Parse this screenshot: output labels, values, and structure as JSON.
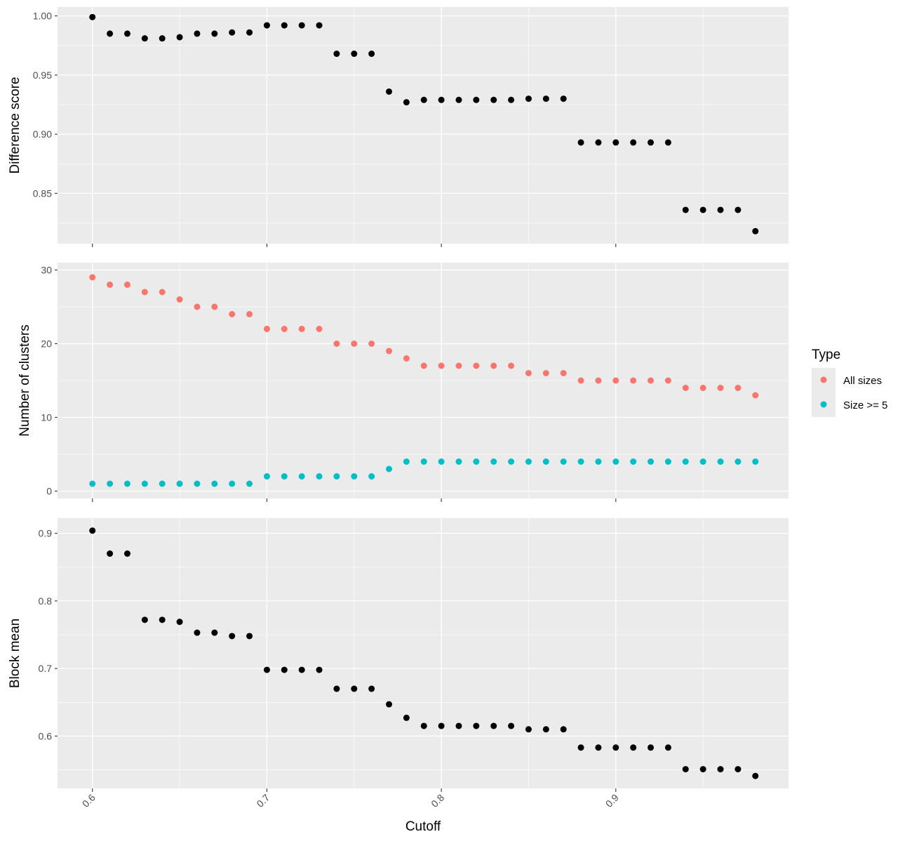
{
  "chart_data": {
    "type": "scatter",
    "xlabel": "Cutoff",
    "x_ticks": [
      "0.6",
      "0.7",
      "0.8",
      "0.9"
    ],
    "xlim": [
      0.58,
      0.999
    ],
    "grid": true,
    "legend": {
      "title": "Type",
      "placement": "right",
      "entries": [
        {
          "label": "All sizes",
          "color": "#F8766D"
        },
        {
          "label": "Size >= 5",
          "color": "#00BFC4"
        }
      ]
    },
    "panels": [
      {
        "ylabel": "Difference score",
        "ylim": [
          0.8075,
          1.0075
        ],
        "y_ticks": [
          "0.85",
          "0.90",
          "0.95",
          "1.00"
        ],
        "y_tick_values": [
          0.85,
          0.9,
          0.95,
          1.0
        ],
        "series": [
          {
            "color": "#000000",
            "x": [
              0.6,
              0.61,
              0.62,
              0.63,
              0.64,
              0.65,
              0.66,
              0.67,
              0.68,
              0.69,
              0.7,
              0.71,
              0.72,
              0.73,
              0.74,
              0.75,
              0.76,
              0.77,
              0.78,
              0.79,
              0.8,
              0.81,
              0.82,
              0.83,
              0.84,
              0.85,
              0.86,
              0.87,
              0.88,
              0.89,
              0.9,
              0.91,
              0.92,
              0.93,
              0.94,
              0.95,
              0.96,
              0.97,
              0.98
            ],
            "y": [
              0.999,
              0.985,
              0.985,
              0.981,
              0.981,
              0.982,
              0.985,
              0.985,
              0.986,
              0.986,
              0.992,
              0.992,
              0.992,
              0.992,
              0.968,
              0.968,
              0.968,
              0.936,
              0.927,
              0.929,
              0.929,
              0.929,
              0.929,
              0.929,
              0.929,
              0.93,
              0.93,
              0.93,
              0.893,
              0.893,
              0.893,
              0.893,
              0.893,
              0.893,
              0.836,
              0.836,
              0.836,
              0.836,
              0.818
            ]
          }
        ]
      },
      {
        "ylabel": "Number of clusters",
        "ylim": [
          -1,
          31
        ],
        "y_ticks": [
          "0",
          "10",
          "20",
          "30"
        ],
        "y_tick_values": [
          0,
          10,
          20,
          30
        ],
        "series": [
          {
            "name": "All sizes",
            "color": "#F8766D",
            "x": [
              0.6,
              0.61,
              0.62,
              0.63,
              0.64,
              0.65,
              0.66,
              0.67,
              0.68,
              0.69,
              0.7,
              0.71,
              0.72,
              0.73,
              0.74,
              0.75,
              0.76,
              0.77,
              0.78,
              0.79,
              0.8,
              0.81,
              0.82,
              0.83,
              0.84,
              0.85,
              0.86,
              0.87,
              0.88,
              0.89,
              0.9,
              0.91,
              0.92,
              0.93,
              0.94,
              0.95,
              0.96,
              0.97,
              0.98
            ],
            "y": [
              29,
              28,
              28,
              27,
              27,
              26,
              25,
              25,
              24,
              24,
              22,
              22,
              22,
              22,
              20,
              20,
              20,
              19,
              18,
              17,
              17,
              17,
              17,
              17,
              17,
              16,
              16,
              16,
              15,
              15,
              15,
              15,
              15,
              15,
              14,
              14,
              14,
              14,
              13
            ]
          },
          {
            "name": "Size >= 5",
            "color": "#00BFC4",
            "x": [
              0.6,
              0.61,
              0.62,
              0.63,
              0.64,
              0.65,
              0.66,
              0.67,
              0.68,
              0.69,
              0.7,
              0.71,
              0.72,
              0.73,
              0.74,
              0.75,
              0.76,
              0.77,
              0.78,
              0.79,
              0.8,
              0.81,
              0.82,
              0.83,
              0.84,
              0.85,
              0.86,
              0.87,
              0.88,
              0.89,
              0.9,
              0.91,
              0.92,
              0.93,
              0.94,
              0.95,
              0.96,
              0.97,
              0.98
            ],
            "y": [
              1,
              1,
              1,
              1,
              1,
              1,
              1,
              1,
              1,
              1,
              2,
              2,
              2,
              2,
              2,
              2,
              2,
              3,
              4,
              4,
              4,
              4,
              4,
              4,
              4,
              4,
              4,
              4,
              4,
              4,
              4,
              4,
              4,
              4,
              4,
              4,
              4,
              4,
              4
            ]
          }
        ]
      },
      {
        "ylabel": "Block mean",
        "ylim": [
          0.5225,
          0.9225
        ],
        "y_ticks": [
          "0.6",
          "0.7",
          "0.8",
          "0.9"
        ],
        "y_tick_values": [
          0.6,
          0.7,
          0.8,
          0.9
        ],
        "series": [
          {
            "color": "#000000",
            "x": [
              0.6,
              0.61,
              0.62,
              0.63,
              0.64,
              0.65,
              0.66,
              0.67,
              0.68,
              0.69,
              0.7,
              0.71,
              0.72,
              0.73,
              0.74,
              0.75,
              0.76,
              0.77,
              0.78,
              0.79,
              0.8,
              0.81,
              0.82,
              0.83,
              0.84,
              0.85,
              0.86,
              0.87,
              0.88,
              0.89,
              0.9,
              0.91,
              0.92,
              0.93,
              0.94,
              0.95,
              0.96,
              0.97,
              0.98
            ],
            "y": [
              0.904,
              0.87,
              0.87,
              0.772,
              0.772,
              0.769,
              0.753,
              0.753,
              0.748,
              0.748,
              0.698,
              0.698,
              0.698,
              0.698,
              0.67,
              0.67,
              0.67,
              0.647,
              0.627,
              0.615,
              0.615,
              0.615,
              0.615,
              0.615,
              0.615,
              0.61,
              0.61,
              0.61,
              0.583,
              0.583,
              0.583,
              0.583,
              0.583,
              0.583,
              0.551,
              0.551,
              0.551,
              0.551,
              0.541
            ]
          }
        ]
      }
    ]
  }
}
